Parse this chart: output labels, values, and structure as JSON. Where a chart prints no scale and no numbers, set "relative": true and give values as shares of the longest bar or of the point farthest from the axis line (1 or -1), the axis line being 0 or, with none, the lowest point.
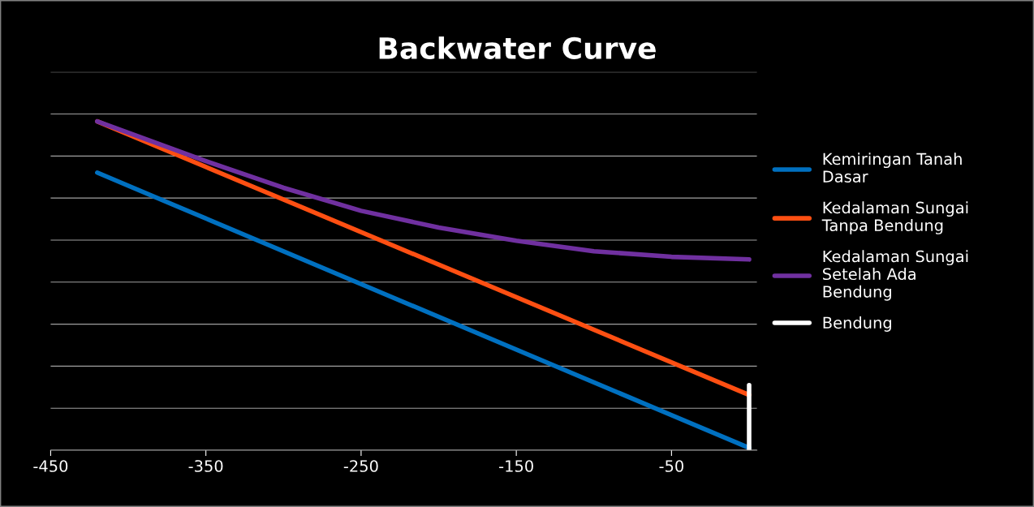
{
  "chart_data": {
    "type": "line",
    "title": "Backwater Curve",
    "relative": true,
    "xlim": [
      -450,
      5
    ],
    "xticks": [
      -450,
      -350,
      -250,
      -150,
      -50
    ],
    "grid": "y",
    "legend": "right",
    "line_style": "solid",
    "marker": "none",
    "series": [
      {
        "name": "Kemiringan Tanah Dasar",
        "color": "#0070c0",
        "x": [
          -420,
          0
        ],
        "values": [
          0.844,
          0.007
        ]
      },
      {
        "name": "Kedalaman Sungai Tanpa Bendung",
        "color": "#ff4f12",
        "x": [
          -420,
          0
        ],
        "values": [
          1.0,
          0.168
        ]
      },
      {
        "name": "Kedalaman Sungai Setelah Ada Bendung",
        "color": "#7030a0",
        "x": [
          -420,
          -350,
          -300,
          -250,
          -200,
          -150,
          -100,
          -50,
          0
        ],
        "values": [
          1.0,
          0.879,
          0.798,
          0.728,
          0.677,
          0.637,
          0.605,
          0.588,
          0.58
        ]
      },
      {
        "name": "Bendung",
        "color": "#ffffff",
        "x": [
          0,
          0
        ],
        "values": [
          0,
          0.198
        ]
      }
    ]
  }
}
